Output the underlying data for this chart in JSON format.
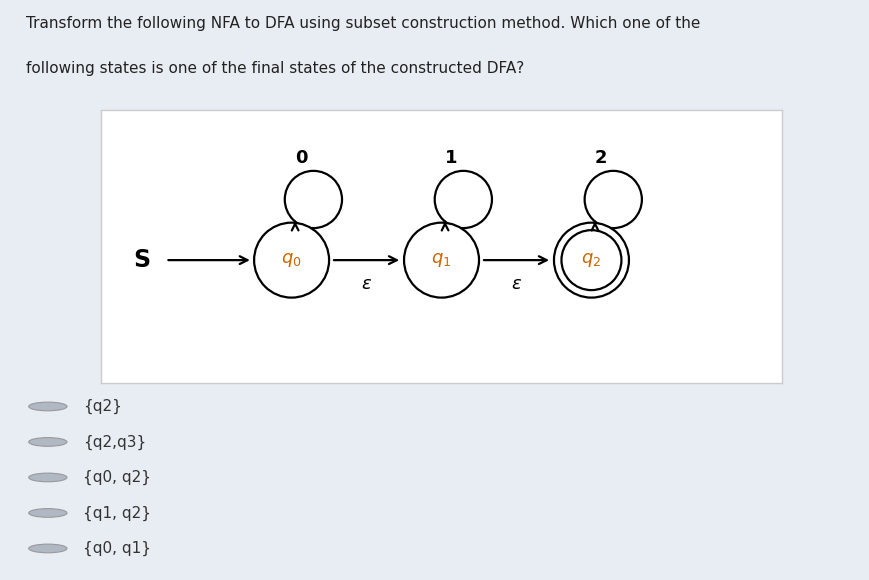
{
  "title_line1": "Transform the following NFA to DFA using subset construction method. Which one of the",
  "title_line2": "following states is one of the final states of the constructed DFA?",
  "bg_color": "#e8edf3",
  "diagram_bg": "#ffffff",
  "self_loop_labels": [
    "0",
    "1",
    "2"
  ],
  "transition_labels": [
    "ε",
    "ε"
  ],
  "start_label": "S",
  "options": [
    "{q2}",
    "{q2,q3}",
    "{q0, q2}",
    "{q1, q2}",
    "{q0, q1}"
  ],
  "title_color": "#222222",
  "label_color": "#cc6600",
  "diagram_border_color": "#cccccc",
  "radio_fill": "#b0b8c4"
}
